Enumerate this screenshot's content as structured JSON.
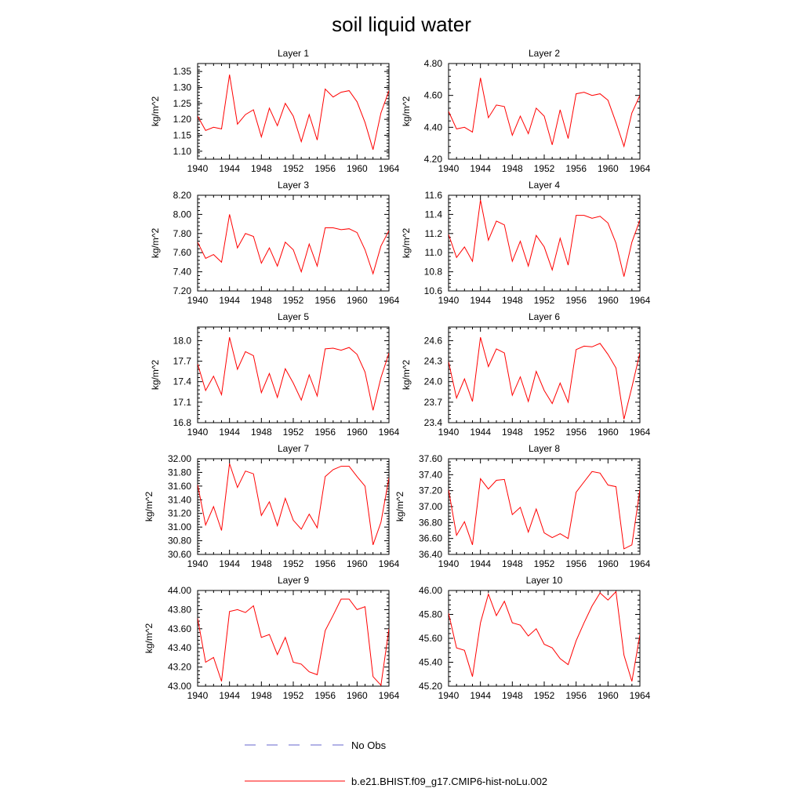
{
  "title": "soil liquid water",
  "legend": {
    "obs_label": "No Obs",
    "model_label": "b.e21.BHIST.f09_g17.CMIP6-hist-noLu.002",
    "obs_color": "#6666cc",
    "model_color": "#ff0000"
  },
  "chart_data": [
    {
      "type": "line",
      "title": "Layer 1",
      "ylabel": "kg/m^2",
      "xlim": [
        1940,
        1964
      ],
      "ylim": [
        1.075,
        1.375
      ],
      "xticks": [
        "1940",
        "1944",
        "1948",
        "1952",
        "1956",
        "1960",
        "1964"
      ],
      "yticks": [
        "1.10",
        "1.15",
        "1.20",
        "1.25",
        "1.30",
        "1.35"
      ],
      "series": [
        {
          "color": "#ff0000",
          "x": [
            1940,
            1941,
            1942,
            1943,
            1944,
            1945,
            1946,
            1947,
            1948,
            1949,
            1950,
            1951,
            1952,
            1953,
            1954,
            1955,
            1956,
            1957,
            1958,
            1959,
            1960,
            1961,
            1962,
            1963,
            1964
          ],
          "values": [
            1.21,
            1.165,
            1.175,
            1.17,
            1.34,
            1.185,
            1.215,
            1.23,
            1.145,
            1.235,
            1.18,
            1.25,
            1.21,
            1.13,
            1.215,
            1.135,
            1.295,
            1.27,
            1.285,
            1.29,
            1.255,
            1.19,
            1.105,
            1.22,
            1.29
          ]
        }
      ]
    },
    {
      "type": "line",
      "title": "Layer 2",
      "ylabel": "kg/m^2",
      "xlim": [
        1940,
        1964
      ],
      "ylim": [
        4.2,
        4.8
      ],
      "xticks": [
        "1940",
        "1944",
        "1948",
        "1952",
        "1956",
        "1960",
        "1964"
      ],
      "yticks": [
        "4.20",
        "4.40",
        "4.60",
        "4.80"
      ],
      "series": [
        {
          "color": "#ff0000",
          "x": [
            1940,
            1941,
            1942,
            1943,
            1944,
            1945,
            1946,
            1947,
            1948,
            1949,
            1950,
            1951,
            1952,
            1953,
            1954,
            1955,
            1956,
            1957,
            1958,
            1959,
            1960,
            1961,
            1962,
            1963,
            1964
          ],
          "values": [
            4.5,
            4.39,
            4.4,
            4.37,
            4.71,
            4.46,
            4.54,
            4.53,
            4.35,
            4.47,
            4.36,
            4.52,
            4.47,
            4.29,
            4.51,
            4.33,
            4.61,
            4.62,
            4.6,
            4.61,
            4.57,
            4.43,
            4.28,
            4.49,
            4.6
          ]
        }
      ]
    },
    {
      "type": "line",
      "title": "Layer 3",
      "ylabel": "kg/m^2",
      "xlim": [
        1940,
        1964
      ],
      "ylim": [
        7.2,
        8.2
      ],
      "xticks": [
        "1940",
        "1944",
        "1948",
        "1952",
        "1956",
        "1960",
        "1964"
      ],
      "yticks": [
        "7.20",
        "7.40",
        "7.60",
        "7.80",
        "8.00",
        "8.20"
      ],
      "series": [
        {
          "color": "#ff0000",
          "x": [
            1940,
            1941,
            1942,
            1943,
            1944,
            1945,
            1946,
            1947,
            1948,
            1949,
            1950,
            1951,
            1952,
            1953,
            1954,
            1955,
            1956,
            1957,
            1958,
            1959,
            1960,
            1961,
            1962,
            1963,
            1964
          ],
          "values": [
            7.71,
            7.54,
            7.58,
            7.5,
            8.0,
            7.65,
            7.8,
            7.77,
            7.49,
            7.65,
            7.46,
            7.71,
            7.63,
            7.4,
            7.69,
            7.46,
            7.86,
            7.86,
            7.84,
            7.85,
            7.81,
            7.63,
            7.38,
            7.67,
            7.83
          ]
        }
      ]
    },
    {
      "type": "line",
      "title": "Layer 4",
      "ylabel": "kg/m^2",
      "xlim": [
        1940,
        1964
      ],
      "ylim": [
        10.6,
        11.6
      ],
      "xticks": [
        "1940",
        "1944",
        "1948",
        "1952",
        "1956",
        "1960",
        "1964"
      ],
      "yticks": [
        "10.6",
        "10.8",
        "11.0",
        "11.2",
        "11.4",
        "11.6"
      ],
      "series": [
        {
          "color": "#ff0000",
          "x": [
            1940,
            1941,
            1942,
            1943,
            1944,
            1945,
            1946,
            1947,
            1948,
            1949,
            1950,
            1951,
            1952,
            1953,
            1954,
            1955,
            1956,
            1957,
            1958,
            1959,
            1960,
            1961,
            1962,
            1963,
            1964
          ],
          "values": [
            11.19,
            10.95,
            11.06,
            10.91,
            11.55,
            11.13,
            11.33,
            11.29,
            10.91,
            11.12,
            10.86,
            11.18,
            11.06,
            10.82,
            11.15,
            10.87,
            11.39,
            11.39,
            11.36,
            11.38,
            11.31,
            11.1,
            10.75,
            11.11,
            11.34
          ]
        }
      ]
    },
    {
      "type": "line",
      "title": "Layer 5",
      "ylabel": "kg/m^2",
      "xlim": [
        1940,
        1964
      ],
      "ylim": [
        16.8,
        18.2
      ],
      "xticks": [
        "1940",
        "1944",
        "1948",
        "1952",
        "1956",
        "1960",
        "1964"
      ],
      "yticks": [
        "16.8",
        "17.1",
        "17.4",
        "17.7",
        "18.0"
      ],
      "series": [
        {
          "color": "#ff0000",
          "x": [
            1940,
            1941,
            1942,
            1943,
            1944,
            1945,
            1946,
            1947,
            1948,
            1949,
            1950,
            1951,
            1952,
            1953,
            1954,
            1955,
            1956,
            1957,
            1958,
            1959,
            1960,
            1961,
            1962,
            1963,
            1964
          ],
          "values": [
            17.66,
            17.27,
            17.48,
            17.21,
            18.05,
            17.58,
            17.84,
            17.78,
            17.24,
            17.52,
            17.17,
            17.59,
            17.38,
            17.13,
            17.5,
            17.19,
            17.88,
            17.89,
            17.86,
            17.9,
            17.8,
            17.54,
            16.98,
            17.46,
            17.82
          ]
        }
      ]
    },
    {
      "type": "line",
      "title": "Layer 6",
      "ylabel": "kg/m^2",
      "xlim": [
        1940,
        1964
      ],
      "ylim": [
        23.4,
        24.8
      ],
      "xticks": [
        "1940",
        "1944",
        "1948",
        "1952",
        "1956",
        "1960",
        "1964"
      ],
      "yticks": [
        "23.4",
        "23.7",
        "24.0",
        "24.3",
        "24.6"
      ],
      "series": [
        {
          "color": "#ff0000",
          "x": [
            1940,
            1941,
            1942,
            1943,
            1944,
            1945,
            1946,
            1947,
            1948,
            1949,
            1950,
            1951,
            1952,
            1953,
            1954,
            1955,
            1956,
            1957,
            1958,
            1959,
            1960,
            1961,
            1962,
            1963,
            1964
          ],
          "values": [
            24.29,
            23.76,
            24.04,
            23.71,
            24.65,
            24.22,
            24.48,
            24.42,
            23.8,
            24.07,
            23.71,
            24.15,
            23.87,
            23.68,
            23.98,
            23.7,
            24.47,
            24.52,
            24.51,
            24.56,
            24.4,
            24.2,
            23.45,
            23.92,
            24.42
          ]
        }
      ]
    },
    {
      "type": "line",
      "title": "Layer 7",
      "ylabel": "kg/m^2",
      "xlim": [
        1940,
        1964
      ],
      "ylim": [
        30.6,
        32.0
      ],
      "xticks": [
        "1940",
        "1944",
        "1948",
        "1952",
        "1956",
        "1960",
        "1964"
      ],
      "yticks": [
        "30.60",
        "30.80",
        "31.00",
        "31.20",
        "31.40",
        "31.60",
        "31.80",
        "32.00"
      ],
      "series": [
        {
          "color": "#ff0000",
          "x": [
            1940,
            1941,
            1942,
            1943,
            1944,
            1945,
            1946,
            1947,
            1948,
            1949,
            1950,
            1951,
            1952,
            1953,
            1954,
            1955,
            1956,
            1957,
            1958,
            1959,
            1960,
            1961,
            1962,
            1963,
            1964
          ],
          "values": [
            31.62,
            31.03,
            31.3,
            30.95,
            31.93,
            31.58,
            31.82,
            31.78,
            31.17,
            31.37,
            31.02,
            31.42,
            31.1,
            30.97,
            31.19,
            30.99,
            31.74,
            31.84,
            31.89,
            31.89,
            31.74,
            31.6,
            30.74,
            31.07,
            31.72
          ]
        }
      ]
    },
    {
      "type": "line",
      "title": "Layer 8",
      "ylabel": "kg/m^2",
      "xlim": [
        1940,
        1964
      ],
      "ylim": [
        36.4,
        37.6
      ],
      "xticks": [
        "1940",
        "1944",
        "1948",
        "1952",
        "1956",
        "1960",
        "1964"
      ],
      "yticks": [
        "36.40",
        "36.60",
        "36.80",
        "37.00",
        "37.20",
        "37.40",
        "37.60"
      ],
      "series": [
        {
          "color": "#ff0000",
          "x": [
            1940,
            1941,
            1942,
            1943,
            1944,
            1945,
            1946,
            1947,
            1948,
            1949,
            1950,
            1951,
            1952,
            1953,
            1954,
            1955,
            1956,
            1957,
            1958,
            1959,
            1960,
            1961,
            1962,
            1963,
            1964
          ],
          "values": [
            37.21,
            36.64,
            36.81,
            36.52,
            37.35,
            37.22,
            37.33,
            37.34,
            36.9,
            36.99,
            36.68,
            36.97,
            36.67,
            36.61,
            36.66,
            36.6,
            37.18,
            37.31,
            37.44,
            37.42,
            37.27,
            37.25,
            36.47,
            36.52,
            37.21
          ]
        }
      ]
    },
    {
      "type": "line",
      "title": "Layer 9",
      "ylabel": "kg/m^2",
      "xlim": [
        1940,
        1964
      ],
      "ylim": [
        43.0,
        44.0
      ],
      "xticks": [
        "1940",
        "1944",
        "1948",
        "1952",
        "1956",
        "1960",
        "1964"
      ],
      "yticks": [
        "43.00",
        "43.20",
        "43.40",
        "43.60",
        "43.80",
        "44.00"
      ],
      "series": [
        {
          "color": "#ff0000",
          "x": [
            1940,
            1941,
            1942,
            1943,
            1944,
            1945,
            1946,
            1947,
            1948,
            1949,
            1950,
            1951,
            1952,
            1953,
            1954,
            1955,
            1956,
            1957,
            1958,
            1959,
            1960,
            1961,
            1962,
            1963,
            1964
          ],
          "values": [
            43.71,
            43.25,
            43.3,
            43.05,
            43.78,
            43.8,
            43.77,
            43.84,
            43.51,
            43.54,
            43.33,
            43.51,
            43.25,
            43.23,
            43.15,
            43.12,
            43.58,
            43.74,
            43.91,
            43.91,
            43.8,
            43.83,
            43.1,
            43.01,
            43.6
          ]
        }
      ]
    },
    {
      "type": "line",
      "title": "Layer 10",
      "ylabel": "",
      "xlim": [
        1940,
        1964
      ],
      "ylim": [
        45.2,
        46.0
      ],
      "xticks": [
        "1940",
        "1944",
        "1948",
        "1952",
        "1956",
        "1960",
        "1964"
      ],
      "yticks": [
        "45.20",
        "45.40",
        "45.60",
        "45.80",
        "46.00"
      ],
      "series": [
        {
          "color": "#ff0000",
          "x": [
            1940,
            1941,
            1942,
            1943,
            1944,
            1945,
            1946,
            1947,
            1948,
            1949,
            1950,
            1951,
            1952,
            1953,
            1954,
            1955,
            1956,
            1957,
            1958,
            1959,
            1960,
            1961,
            1962,
            1963,
            1964
          ],
          "values": [
            45.81,
            45.52,
            45.5,
            45.28,
            45.73,
            45.97,
            45.79,
            45.91,
            45.73,
            45.71,
            45.62,
            45.68,
            45.55,
            45.52,
            45.43,
            45.38,
            45.58,
            45.73,
            45.87,
            45.98,
            45.92,
            45.99,
            45.46,
            45.24,
            45.63
          ]
        }
      ]
    }
  ]
}
